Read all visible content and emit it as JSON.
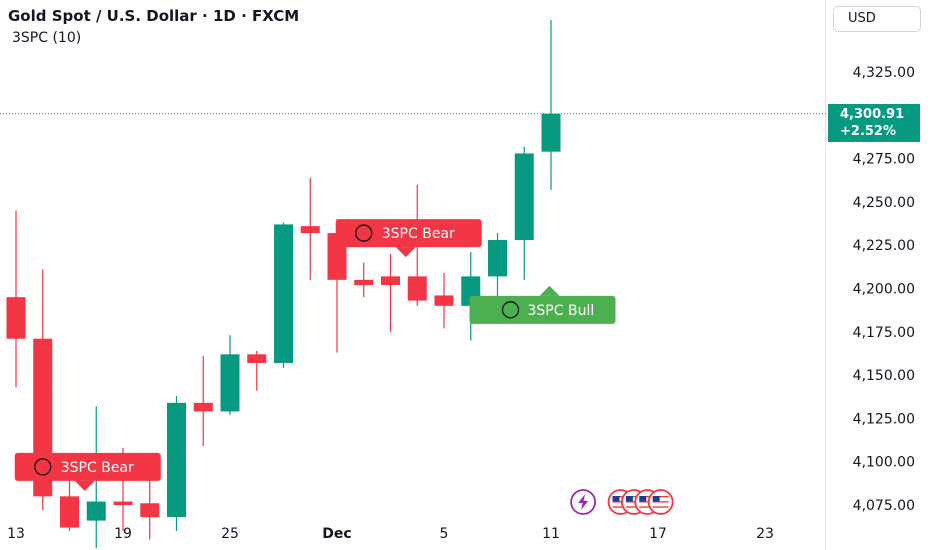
{
  "header": {
    "title": "Gold Spot / U.S. Dollar · 1D · FXCM",
    "indicator": "3SPC (10)",
    "currency": "USD"
  },
  "last_price": {
    "value": "4,300.91",
    "change": "+2.52%",
    "price": 4300.91
  },
  "colors": {
    "up": "#089981",
    "down": "#f23645",
    "bull_signal": "#4caf50",
    "bear_signal": "#f23645"
  },
  "chart_data": {
    "type": "candlestick",
    "title": "Gold Spot / U.S. Dollar · 1D · FXCM",
    "ylim": [
      4065,
      4365
    ],
    "y_ticks": [
      4075,
      4100,
      4125,
      4150,
      4175,
      4200,
      4225,
      4250,
      4275,
      4300,
      4325
    ],
    "y_tick_labels": [
      "4,075.00",
      "4,100.00",
      "4,125.00",
      "4,150.00",
      "4,175.00",
      "4,200.00",
      "4,225.00",
      "4,250.00",
      "4,275.00",
      "",
      "4,325.00"
    ],
    "x_labels": [
      {
        "label": "13",
        "day": 0
      },
      {
        "label": "19",
        "day": 4
      },
      {
        "label": "25",
        "day": 8
      },
      {
        "label": "Dec",
        "day": 12
      },
      {
        "label": "5",
        "day": 16
      },
      {
        "label": "11",
        "day": 20
      },
      {
        "label": "17",
        "day": 24
      },
      {
        "label": "23",
        "day": 28
      }
    ],
    "candles": [
      {
        "day": 0,
        "open": 4195,
        "high": 4245,
        "low": 4143,
        "close": 4171
      },
      {
        "day": 1,
        "open": 4171,
        "high": 4211,
        "low": 4072,
        "close": 4080
      },
      {
        "day": 2,
        "open": 4080,
        "high": 4098,
        "low": 4060,
        "close": 4062
      },
      {
        "day": 3,
        "open": 4066,
        "high": 4132,
        "low": 4050,
        "close": 4077
      },
      {
        "day": 4,
        "open": 4077,
        "high": 4108,
        "low": 4060,
        "close": 4075
      },
      {
        "day": 5,
        "open": 4076,
        "high": 4098,
        "low": 4055,
        "close": 4068
      },
      {
        "day": 6,
        "open": 4068,
        "high": 4138,
        "low": 4060,
        "close": 4134
      },
      {
        "day": 7,
        "open": 4134,
        "high": 4161,
        "low": 4109,
        "close": 4129
      },
      {
        "day": 8,
        "open": 4129,
        "high": 4173,
        "low": 4127,
        "close": 4162
      },
      {
        "day": 9,
        "open": 4162,
        "high": 4164,
        "low": 4141,
        "close": 4157
      },
      {
        "day": 10,
        "open": 4157,
        "high": 4238,
        "low": 4154,
        "close": 4237
      },
      {
        "day": 11,
        "open": 4236,
        "high": 4264,
        "low": 4205,
        "close": 4232
      },
      {
        "day": 12,
        "open": 4232,
        "high": 4240,
        "low": 4163,
        "close": 4205
      },
      {
        "day": 13,
        "open": 4205,
        "high": 4215,
        "low": 4195,
        "close": 4202
      },
      {
        "day": 14,
        "open": 4207,
        "high": 4220,
        "low": 4175,
        "close": 4202
      },
      {
        "day": 15,
        "open": 4207,
        "high": 4260,
        "low": 4190,
        "close": 4193
      },
      {
        "day": 16,
        "open": 4196,
        "high": 4209,
        "low": 4177,
        "close": 4190
      },
      {
        "day": 17,
        "open": 4190,
        "high": 4221,
        "low": 4170,
        "close": 4207
      },
      {
        "day": 18,
        "open": 4207,
        "high": 4232,
        "low": 4190,
        "close": 4228
      },
      {
        "day": 19,
        "open": 4228,
        "high": 4282,
        "low": 4205,
        "close": 4278
      },
      {
        "day": 20,
        "open": 4279,
        "high": 4355,
        "low": 4257,
        "close": 4300.91
      }
    ],
    "signals": [
      {
        "label": "3SPC Bear",
        "type": "bear",
        "day": 1,
        "price": 4097
      },
      {
        "label": "3SPC Bear",
        "type": "bear",
        "day": 13,
        "price": 4232
      },
      {
        "label": "3SPC Bull",
        "type": "bull",
        "day": 18,
        "price": 4190
      }
    ],
    "event_icons": [
      {
        "name": "lightning-icon",
        "day": 21.2
      },
      {
        "name": "us-flag-icon",
        "day": 22.6
      },
      {
        "name": "us-flag-icon",
        "day": 23.1
      },
      {
        "name": "us-flag-icon",
        "day": 23.6
      },
      {
        "name": "us-flag-icon",
        "day": 24.1
      }
    ]
  }
}
